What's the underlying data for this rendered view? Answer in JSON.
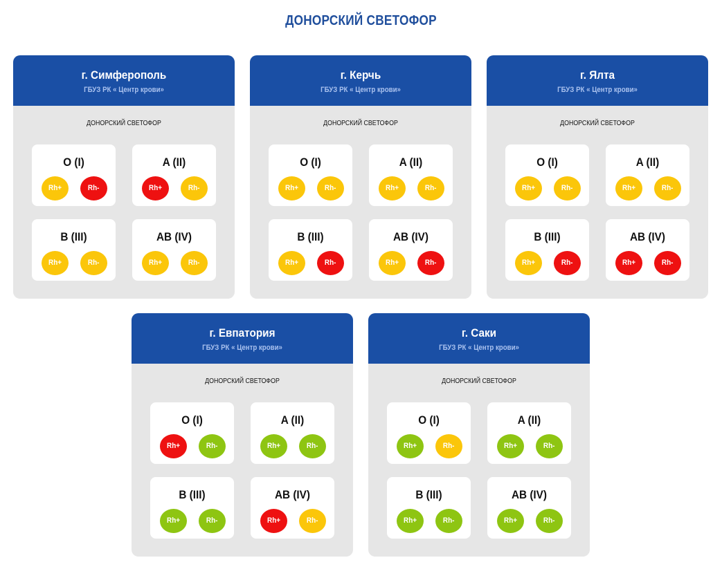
{
  "page": {
    "title": "ДОНОРСКИЙ СВЕТОФОР"
  },
  "colors": {
    "red": "#ee1111",
    "yellow": "#fbc60a",
    "green": "#8ec512",
    "header": "#1a4fa5",
    "title": "#1f4e9c"
  },
  "cards": [
    {
      "city": "г. Симферополь",
      "org": "ГБУЗ РК « Центр крови»",
      "subtitle": "ДОНОРСКИЙ СВЕТОФОР",
      "groups": [
        {
          "label": "O (I)",
          "pos": {
            "text": "Rh+",
            "status": "yellow"
          },
          "neg": {
            "text": "Rh-",
            "status": "red"
          }
        },
        {
          "label": "A (II)",
          "pos": {
            "text": "Rh+",
            "status": "red"
          },
          "neg": {
            "text": "Rh-",
            "status": "yellow"
          }
        },
        {
          "label": "B (III)",
          "pos": {
            "text": "Rh+",
            "status": "yellow"
          },
          "neg": {
            "text": "Rh-",
            "status": "yellow"
          }
        },
        {
          "label": "AB (IV)",
          "pos": {
            "text": "Rh+",
            "status": "yellow"
          },
          "neg": {
            "text": "Rh-",
            "status": "yellow"
          }
        }
      ]
    },
    {
      "city": "г. Керчь",
      "org": "ГБУЗ РК « Центр крови»",
      "subtitle": "ДОНОРСКИЙ СВЕТОФОР",
      "groups": [
        {
          "label": "O (I)",
          "pos": {
            "text": "Rh+",
            "status": "yellow"
          },
          "neg": {
            "text": "Rh-",
            "status": "yellow"
          }
        },
        {
          "label": "A (II)",
          "pos": {
            "text": "Rh+",
            "status": "yellow"
          },
          "neg": {
            "text": "Rh-",
            "status": "yellow"
          }
        },
        {
          "label": "B (III)",
          "pos": {
            "text": "Rh+",
            "status": "yellow"
          },
          "neg": {
            "text": "Rh-",
            "status": "red"
          }
        },
        {
          "label": "AB (IV)",
          "pos": {
            "text": "Rh+",
            "status": "yellow"
          },
          "neg": {
            "text": "Rh-",
            "status": "red"
          }
        }
      ]
    },
    {
      "city": "г. Ялта",
      "org": "ГБУЗ РК « Центр крови»",
      "subtitle": "ДОНОРСКИЙ СВЕТОФОР",
      "groups": [
        {
          "label": "O (I)",
          "pos": {
            "text": "Rh+",
            "status": "yellow"
          },
          "neg": {
            "text": "Rh-",
            "status": "yellow"
          }
        },
        {
          "label": "A (II)",
          "pos": {
            "text": "Rh+",
            "status": "yellow"
          },
          "neg": {
            "text": "Rh-",
            "status": "yellow"
          }
        },
        {
          "label": "B (III)",
          "pos": {
            "text": "Rh+",
            "status": "yellow"
          },
          "neg": {
            "text": "Rh-",
            "status": "red"
          }
        },
        {
          "label": "AB (IV)",
          "pos": {
            "text": "Rh+",
            "status": "red"
          },
          "neg": {
            "text": "Rh-",
            "status": "red"
          }
        }
      ]
    },
    {
      "city": "г. Евпатория",
      "org": "ГБУЗ РК « Центр крови»",
      "subtitle": "ДОНОРСКИЙ СВЕТОФОР",
      "groups": [
        {
          "label": "O (I)",
          "pos": {
            "text": "Rh+",
            "status": "red"
          },
          "neg": {
            "text": "Rh-",
            "status": "green"
          }
        },
        {
          "label": "A (II)",
          "pos": {
            "text": "Rh+",
            "status": "green"
          },
          "neg": {
            "text": "Rh-",
            "status": "green"
          }
        },
        {
          "label": "B (III)",
          "pos": {
            "text": "Rh+",
            "status": "green"
          },
          "neg": {
            "text": "Rh-",
            "status": "green"
          }
        },
        {
          "label": "AB (IV)",
          "pos": {
            "text": "Rh+",
            "status": "red"
          },
          "neg": {
            "text": "Rh-",
            "status": "yellow"
          }
        }
      ]
    },
    {
      "city": "г. Саки",
      "org": "ГБУЗ РК « Центр крови»",
      "subtitle": "ДОНОРСКИЙ СВЕТОФОР",
      "groups": [
        {
          "label": "O (I)",
          "pos": {
            "text": "Rh+",
            "status": "green"
          },
          "neg": {
            "text": "Rh-",
            "status": "yellow"
          }
        },
        {
          "label": "A (II)",
          "pos": {
            "text": "Rh+",
            "status": "green"
          },
          "neg": {
            "text": "Rh-",
            "status": "green"
          }
        },
        {
          "label": "B (III)",
          "pos": {
            "text": "Rh+",
            "status": "green"
          },
          "neg": {
            "text": "Rh-",
            "status": "green"
          }
        },
        {
          "label": "AB (IV)",
          "pos": {
            "text": "Rh+",
            "status": "green"
          },
          "neg": {
            "text": "Rh-",
            "status": "green"
          }
        }
      ]
    }
  ]
}
